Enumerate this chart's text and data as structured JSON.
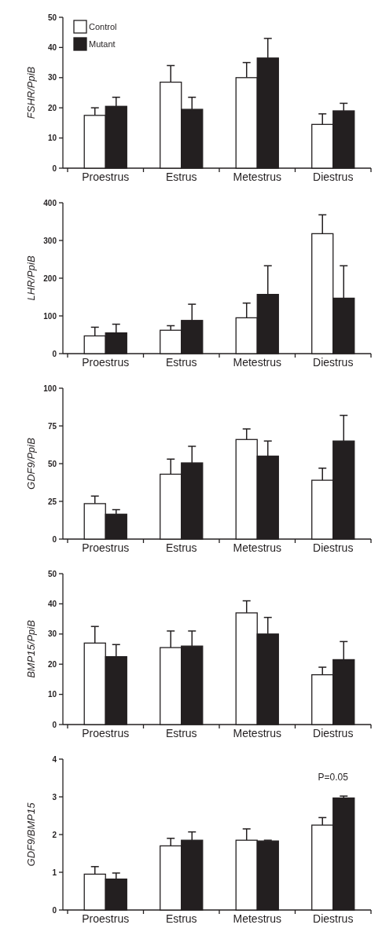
{
  "chart_data": [
    {
      "type": "bar",
      "ylabel": "FSHR/PpiB",
      "categories": [
        "Proestrus",
        "Estrus",
        "Metestrus",
        "Diestrus"
      ],
      "ylim": [
        0,
        50
      ],
      "yticks": [
        0,
        10,
        20,
        30,
        40,
        50
      ],
      "legend": "top left",
      "series": [
        {
          "name": "Control",
          "color": "#ffffff",
          "values": [
            17.5,
            28.5,
            30,
            14.5
          ],
          "errors": [
            [
              17.5,
              20
            ],
            [
              28.5,
              34
            ],
            [
              30,
              35
            ],
            [
              14.5,
              18
            ]
          ]
        },
        {
          "name": "Mutant",
          "color": "#231f20",
          "values": [
            20.5,
            19.5,
            36.5,
            19
          ],
          "errors": [
            [
              20.5,
              23.5
            ],
            [
              19.5,
              23.5
            ],
            [
              36.5,
              43
            ],
            [
              19,
              21.5
            ]
          ]
        }
      ]
    },
    {
      "type": "bar",
      "ylabel": "LHR/PpiB",
      "categories": [
        "Proestrus",
        "Estrus",
        "Metestrus",
        "Diestrus"
      ],
      "ylim": [
        0,
        400
      ],
      "yticks": [
        0,
        100,
        200,
        300,
        400
      ],
      "series": [
        {
          "color": "#ffffff",
          "values": [
            47,
            62,
            95,
            318
          ],
          "errors": [
            [
              47,
              70
            ],
            [
              62,
              74
            ],
            [
              95,
              134
            ],
            [
              318,
              368
            ]
          ]
        },
        {
          "color": "#231f20",
          "values": [
            55,
            88,
            157,
            147
          ],
          "errors": [
            [
              55,
              78
            ],
            [
              88,
              131
            ],
            [
              157,
              233
            ],
            [
              147,
              233
            ]
          ]
        }
      ]
    },
    {
      "type": "bar",
      "ylabel": "GDF9/PpiB",
      "categories": [
        "Proestrus",
        "Estrus",
        "Metestrus",
        "Diestrus"
      ],
      "ylim": [
        0,
        100
      ],
      "yticks": [
        0,
        25,
        50,
        75,
        100
      ],
      "series": [
        {
          "color": "#ffffff",
          "values": [
            23.5,
            43,
            66,
            39
          ],
          "errors": [
            [
              23.5,
              28.5
            ],
            [
              43,
              53
            ],
            [
              66,
              73
            ],
            [
              39,
              47
            ]
          ]
        },
        {
          "color": "#231f20",
          "values": [
            16.5,
            50.5,
            55,
            65
          ],
          "errors": [
            [
              16.5,
              19.5
            ],
            [
              50.5,
              61.5
            ],
            [
              55,
              65
            ],
            [
              65,
              82
            ]
          ]
        }
      ]
    },
    {
      "type": "bar",
      "ylabel": "BMP15/PpiB",
      "categories": [
        "Proestrus",
        "Estrus",
        "Metestrus",
        "Diestrus"
      ],
      "ylim": [
        0,
        50
      ],
      "yticks": [
        0,
        10,
        20,
        30,
        40,
        50
      ],
      "series": [
        {
          "color": "#ffffff",
          "values": [
            27,
            25.5,
            37,
            16.5
          ],
          "errors": [
            [
              27,
              32.5
            ],
            [
              25.5,
              31
            ],
            [
              37,
              41
            ],
            [
              16.5,
              19
            ]
          ]
        },
        {
          "color": "#231f20",
          "values": [
            22.5,
            26,
            30,
            21.5
          ],
          "errors": [
            [
              22.5,
              26.5
            ],
            [
              26,
              31
            ],
            [
              30,
              35.5
            ],
            [
              21.5,
              27.5
            ]
          ]
        }
      ]
    },
    {
      "type": "bar",
      "ylabel": "GDF9/BMP15",
      "categories": [
        "Proestrus",
        "Estrus",
        "Metestrus",
        "Diestrus"
      ],
      "ylim": [
        0,
        4
      ],
      "yticks": [
        0,
        1,
        2,
        3,
        4
      ],
      "annotations": [
        {
          "text": "P=0.05",
          "x": "Diestrus",
          "y": 3.02
        }
      ],
      "series": [
        {
          "color": "#ffffff",
          "values": [
            0.95,
            1.7,
            1.85,
            2.25
          ],
          "errors": [
            [
              0.95,
              1.15
            ],
            [
              1.7,
              1.9
            ],
            [
              1.85,
              2.15
            ],
            [
              2.25,
              2.45
            ]
          ]
        },
        {
          "color": "#231f20",
          "values": [
            0.82,
            1.85,
            1.83,
            2.97
          ],
          "errors": [
            [
              0.82,
              0.98
            ],
            [
              1.85,
              2.07
            ],
            [
              1.83,
              1.85
            ],
            [
              2.97,
              3.02
            ]
          ]
        }
      ]
    }
  ]
}
